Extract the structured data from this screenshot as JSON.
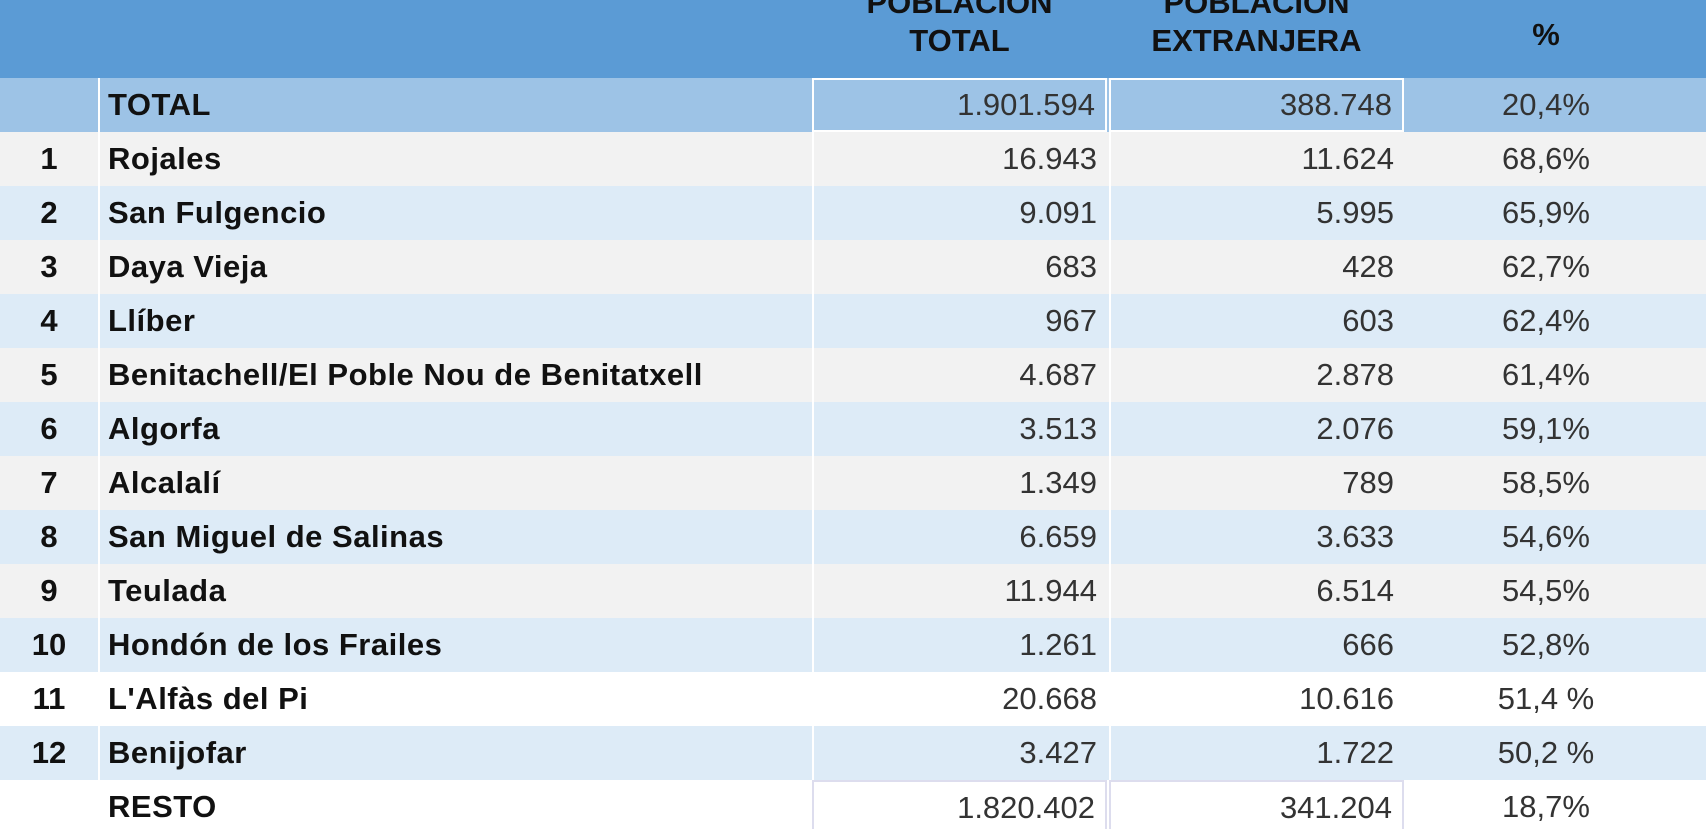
{
  "header": {
    "col_total": "POBLACIÓN\nTOTAL",
    "col_ext": "POBLACIÓN\nEXTRANJERA",
    "col_pct": "%"
  },
  "total_row": {
    "label": "TOTAL",
    "total": "1.901.594",
    "ext": "388.748",
    "pct": "20,4%"
  },
  "rows": [
    {
      "n": "1",
      "name": "Rojales",
      "total": "16.943",
      "ext": "11.624",
      "pct": "68,6%"
    },
    {
      "n": "2",
      "name": "San Fulgencio",
      "total": "9.091",
      "ext": "5.995",
      "pct": "65,9%"
    },
    {
      "n": "3",
      "name": "Daya Vieja",
      "total": "683",
      "ext": "428",
      "pct": "62,7%"
    },
    {
      "n": "4",
      "name": "Llíber",
      "total": "967",
      "ext": "603",
      "pct": "62,4%"
    },
    {
      "n": "5",
      "name": "Benitachell/El Poble Nou de Benitatxell",
      "total": "4.687",
      "ext": "2.878",
      "pct": "61,4%"
    },
    {
      "n": "6",
      "name": "Algorfa",
      "total": "3.513",
      "ext": "2.076",
      "pct": "59,1%"
    },
    {
      "n": "7",
      "name": "Alcalalí",
      "total": "1.349",
      "ext": "789",
      "pct": "58,5%"
    },
    {
      "n": "8",
      "name": "San Miguel de Salinas",
      "total": "6.659",
      "ext": "3.633",
      "pct": "54,6%"
    },
    {
      "n": "9",
      "name": "Teulada",
      "total": "11.944",
      "ext": "6.514",
      "pct": "54,5%"
    },
    {
      "n": "10",
      "name": "Hondón de los Frailes",
      "total": "1.261",
      "ext": "666",
      "pct": "52,8%"
    },
    {
      "n": "11",
      "name": "L'Alfàs del Pi",
      "total": "20.668",
      "ext": "10.616",
      "pct": "51,4 %"
    },
    {
      "n": "12",
      "name": "Benijofar",
      "total": "3.427",
      "ext": "1.722",
      "pct": "50,2 %"
    }
  ],
  "resto_row": {
    "label": "RESTO",
    "total": "1.820.402",
    "ext": "341.204",
    "pct": "18,7%"
  }
}
